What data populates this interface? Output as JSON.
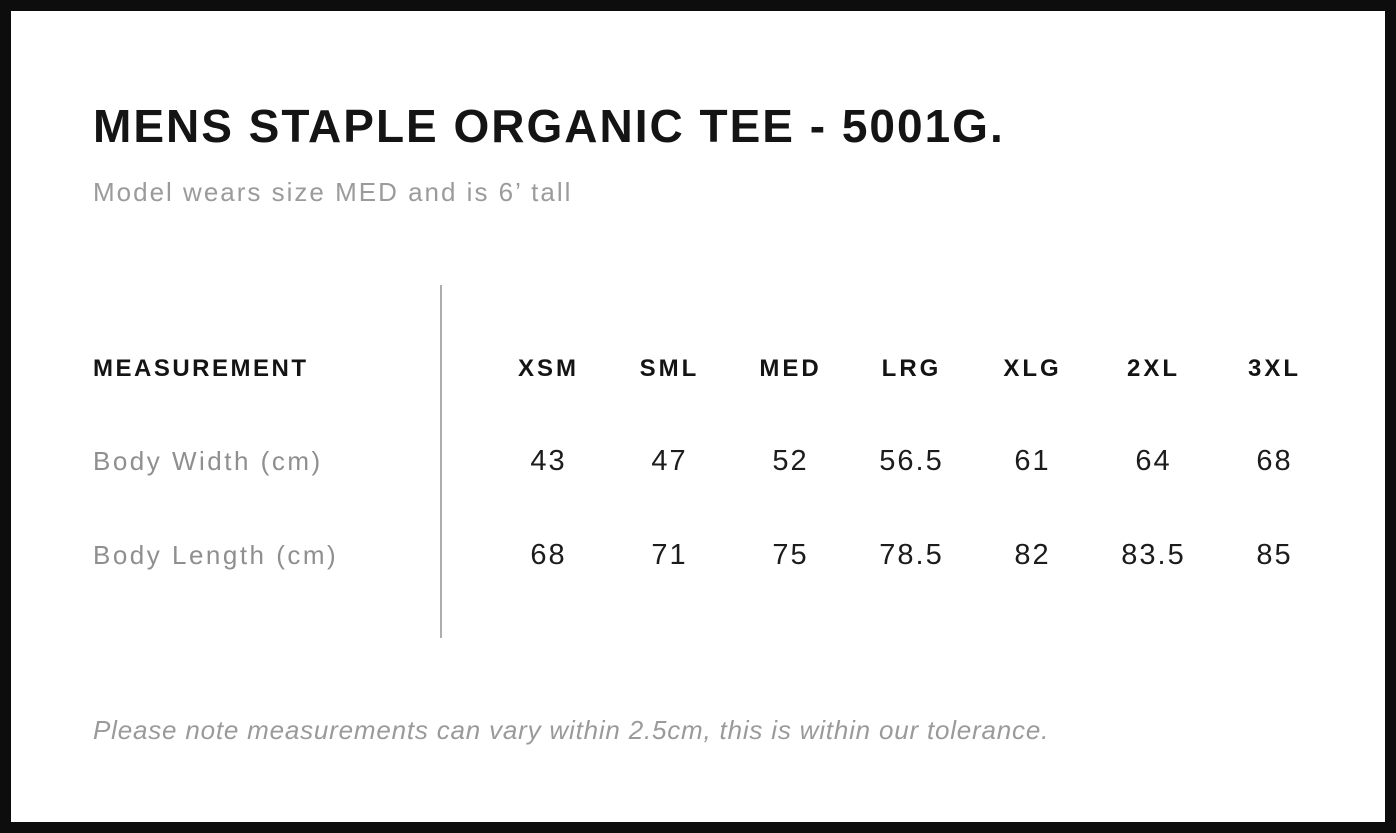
{
  "title": "MENS STAPLE ORGANIC TEE - 5001G.",
  "subtitle": "Model wears size MED and is 6’ tall",
  "footnote": "Please note measurements can vary within 2.5cm, this is within our tolerance.",
  "chart_data": {
    "type": "table",
    "title": "MENS STAPLE ORGANIC TEE - 5001G.",
    "columns": [
      "MEASUREMENT",
      "XSM",
      "SML",
      "MED",
      "LRG",
      "XLG",
      "2XL",
      "3XL"
    ],
    "rows": [
      [
        "Body Width (cm)",
        43,
        47,
        52,
        56.5,
        61,
        64,
        68
      ],
      [
        "Body Length (cm)",
        68,
        71,
        75,
        78.5,
        82,
        83.5,
        85
      ]
    ],
    "tolerance_note": "Please note measurements can vary within 2.5cm, this is within our tolerance."
  },
  "colors": {
    "background": "#ffffff",
    "frame_border": "#0d0d0d",
    "heading_text": "#141414",
    "muted_text": "#9b9b9b",
    "value_text": "#1c1c1c",
    "divider": "#adadad"
  }
}
